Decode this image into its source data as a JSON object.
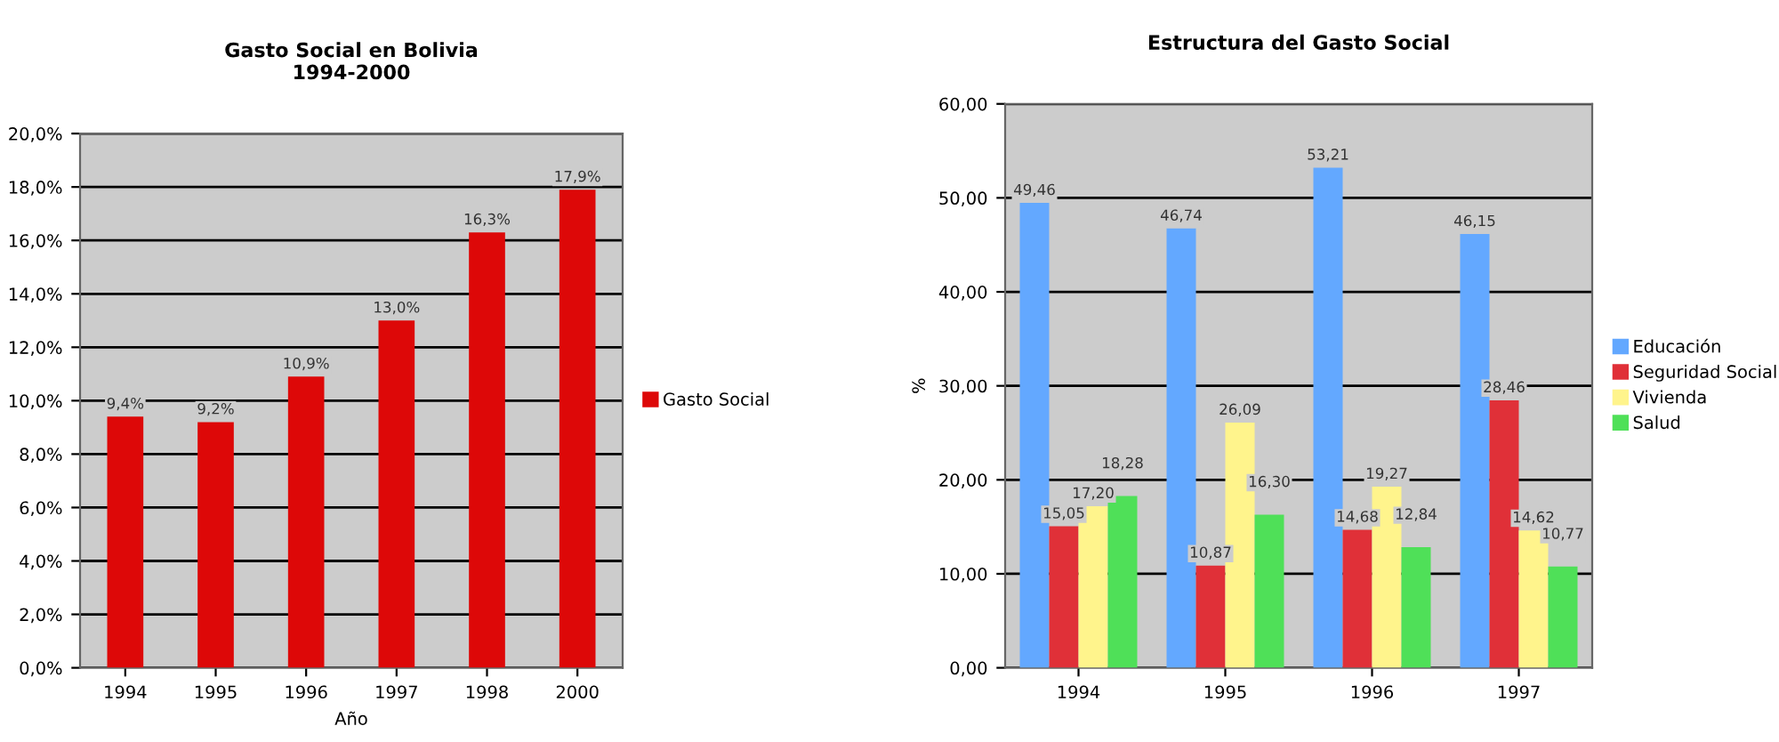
{
  "chart_data": [
    {
      "type": "bar",
      "title": "Gasto Social en Bolivia\n1994-2000",
      "xlabel": "Año",
      "categories": [
        "1994",
        "1995",
        "1996",
        "1997",
        "1998",
        "2000"
      ],
      "series": [
        {
          "name": "Gasto Social",
          "color": "#dd0808",
          "values": [
            9.4,
            9.2,
            10.9,
            13.0,
            16.3,
            17.9
          ],
          "value_labels": [
            "9,4%",
            "9,2%",
            "10,9%",
            "13,0%",
            "16,3%",
            "17,9%"
          ]
        }
      ],
      "ylim": [
        0,
        20
      ],
      "yticks": [
        {
          "value": 0,
          "label": "0,0%"
        },
        {
          "value": 2,
          "label": "2,0%"
        },
        {
          "value": 4,
          "label": "4,0%"
        },
        {
          "value": 6,
          "label": "6,0%"
        },
        {
          "value": 8,
          "label": "8,0%"
        },
        {
          "value": 10,
          "label": "10,0%"
        },
        {
          "value": 12,
          "label": "12,0%"
        },
        {
          "value": 14,
          "label": "14,0%"
        },
        {
          "value": 16,
          "label": "16,0%"
        },
        {
          "value": 18,
          "label": "18,0%"
        },
        {
          "value": 20,
          "label": "20,0%"
        }
      ],
      "grid": "y",
      "legend": "right"
    },
    {
      "type": "bar",
      "title": "Estructura del Gasto Social",
      "ylabel": "%",
      "categories": [
        "1994",
        "1995",
        "1996",
        "1997"
      ],
      "series": [
        {
          "name": "Educación",
          "color": "#63a8ff",
          "values": [
            49.46,
            46.74,
            53.21,
            46.15
          ],
          "value_labels": [
            "49,46",
            "46,74",
            "53,21",
            "46,15"
          ]
        },
        {
          "name": "Seguridad Social",
          "color": "#e03038",
          "values": [
            15.05,
            10.87,
            14.68,
            28.46
          ],
          "value_labels": [
            "15,05",
            "10,87",
            "14,68",
            "28,46"
          ]
        },
        {
          "name": "Vivienda",
          "color": "#fff48c",
          "values": [
            17.2,
            26.09,
            19.27,
            14.62
          ],
          "value_labels": [
            "17,20",
            "26,09",
            "19,27",
            "14,62"
          ]
        },
        {
          "name": "Salud",
          "color": "#4fe058",
          "values": [
            18.28,
            16.3,
            12.84,
            10.77
          ],
          "value_labels": [
            "18,28",
            "16,30",
            "12,84",
            "10,77"
          ]
        }
      ],
      "ylim": [
        0,
        60
      ],
      "yticks": [
        {
          "value": 0,
          "label": "0,00"
        },
        {
          "value": 10,
          "label": "10,00"
        },
        {
          "value": 20,
          "label": "20,00"
        },
        {
          "value": 30,
          "label": "30,00"
        },
        {
          "value": 40,
          "label": "40,00"
        },
        {
          "value": 50,
          "label": "50,00"
        },
        {
          "value": 60,
          "label": "60,00"
        }
      ],
      "grid": "y",
      "legend": "right"
    }
  ]
}
